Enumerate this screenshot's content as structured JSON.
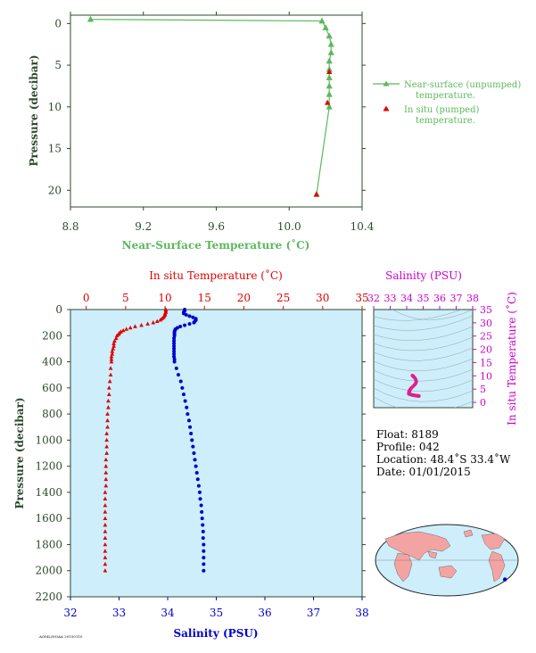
{
  "chart_data": [
    {
      "type": "line",
      "xlabel": "Near-Surface Temperature (˚C)",
      "ylabel": "Pressure (decibar)",
      "xlim": [
        8.8,
        10.4
      ],
      "ylim": [
        22,
        -1
      ],
      "x_ticks": [
        "8.8",
        "9.2",
        "9.6",
        "10.0",
        "10.4"
      ],
      "y_ticks": [
        "0",
        "5",
        "10",
        "15",
        "20"
      ],
      "colors": {
        "axis": "#2d4a2d",
        "label": "#5cb85c",
        "near_surface": "#5cb85c",
        "in_situ": "#e00000"
      },
      "legend": [
        {
          "name": "Near-surface (unpumped)",
          "name2": "temperature."
        },
        {
          "name": "In situ (pumped)",
          "name2": "temperature."
        }
      ],
      "series": [
        {
          "name": "near_surface",
          "points": [
            [
              8.91,
              -0.5
            ],
            [
              10.18,
              -0.3
            ],
            [
              10.2,
              0.5
            ],
            [
              10.22,
              1.5
            ],
            [
              10.23,
              2.5
            ],
            [
              10.23,
              3.5
            ],
            [
              10.22,
              4.5
            ],
            [
              10.22,
              5.5
            ],
            [
              10.22,
              6.5
            ],
            [
              10.22,
              7.5
            ],
            [
              10.22,
              8.5
            ],
            [
              10.22,
              10
            ],
            [
              10.15,
              20.5
            ]
          ]
        },
        {
          "name": "in_situ",
          "points": [
            [
              10.22,
              5.8
            ],
            [
              10.21,
              9.5
            ],
            [
              10.15,
              20.5
            ]
          ]
        }
      ]
    },
    {
      "type": "scatter",
      "x_top_label": "In situ Temperature (˚C)",
      "x_bottom_label": "Salinity (PSU)",
      "ylabel": "Pressure (decibar)",
      "temp_lim": [
        -2,
        35
      ],
      "sal_lim": [
        32,
        38
      ],
      "ylim": [
        2200,
        0
      ],
      "temp_ticks": [
        "0",
        "5",
        "10",
        "15",
        "20",
        "25",
        "30",
        "35"
      ],
      "sal_ticks": [
        "32",
        "33",
        "34",
        "35",
        "36",
        "37",
        "38"
      ],
      "y_ticks": [
        "0",
        "200",
        "400",
        "600",
        "800",
        "1000",
        "1200",
        "1400",
        "1600",
        "1800",
        "2000",
        "2200"
      ],
      "colors": {
        "temperature": "#e00000",
        "salinity": "#0000cc",
        "background": "#cdeefa",
        "axis": "#2d4a2d"
      },
      "temperature": [
        [
          10.1,
          0
        ],
        [
          10.1,
          10
        ],
        [
          10.1,
          20
        ],
        [
          10.0,
          30
        ],
        [
          10.0,
          40
        ],
        [
          9.9,
          50
        ],
        [
          9.8,
          60
        ],
        [
          9.6,
          70
        ],
        [
          9.4,
          80
        ],
        [
          9.0,
          90
        ],
        [
          8.5,
          100
        ],
        [
          7.8,
          110
        ],
        [
          7.0,
          120
        ],
        [
          6.2,
          130
        ],
        [
          5.6,
          140
        ],
        [
          5.1,
          150
        ],
        [
          4.7,
          160
        ],
        [
          4.4,
          170
        ],
        [
          4.2,
          180
        ],
        [
          4.1,
          190
        ],
        [
          3.9,
          200
        ],
        [
          3.8,
          220
        ],
        [
          3.6,
          240
        ],
        [
          3.5,
          260
        ],
        [
          3.5,
          280
        ],
        [
          3.4,
          300
        ],
        [
          3.3,
          320
        ],
        [
          3.3,
          340
        ],
        [
          3.2,
          360
        ],
        [
          3.2,
          380
        ],
        [
          3.2,
          400
        ],
        [
          3.1,
          450
        ],
        [
          3.1,
          500
        ],
        [
          3.0,
          550
        ],
        [
          2.9,
          600
        ],
        [
          2.9,
          650
        ],
        [
          2.8,
          700
        ],
        [
          2.8,
          750
        ],
        [
          2.7,
          800
        ],
        [
          2.7,
          850
        ],
        [
          2.7,
          900
        ],
        [
          2.6,
          950
        ],
        [
          2.6,
          1000
        ],
        [
          2.6,
          1050
        ],
        [
          2.6,
          1100
        ],
        [
          2.5,
          1150
        ],
        [
          2.5,
          1200
        ],
        [
          2.5,
          1250
        ],
        [
          2.5,
          1300
        ],
        [
          2.5,
          1350
        ],
        [
          2.4,
          1400
        ],
        [
          2.4,
          1450
        ],
        [
          2.4,
          1500
        ],
        [
          2.4,
          1550
        ],
        [
          2.4,
          1600
        ],
        [
          2.4,
          1650
        ],
        [
          2.4,
          1700
        ],
        [
          2.4,
          1750
        ],
        [
          2.4,
          1800
        ],
        [
          2.4,
          1850
        ],
        [
          2.4,
          1900
        ],
        [
          2.4,
          1950
        ],
        [
          2.4,
          2000
        ]
      ],
      "salinity": [
        [
          34.35,
          0
        ],
        [
          34.35,
          10
        ],
        [
          34.33,
          20
        ],
        [
          34.33,
          30
        ],
        [
          34.38,
          40
        ],
        [
          34.45,
          50
        ],
        [
          34.52,
          60
        ],
        [
          34.58,
          70
        ],
        [
          34.58,
          80
        ],
        [
          34.56,
          90
        ],
        [
          34.54,
          100
        ],
        [
          34.45,
          110
        ],
        [
          34.35,
          120
        ],
        [
          34.26,
          130
        ],
        [
          34.2,
          140
        ],
        [
          34.16,
          150
        ],
        [
          34.15,
          160
        ],
        [
          34.14,
          170
        ],
        [
          34.14,
          180
        ],
        [
          34.14,
          190
        ],
        [
          34.14,
          200
        ],
        [
          34.13,
          220
        ],
        [
          34.13,
          240
        ],
        [
          34.13,
          260
        ],
        [
          34.13,
          280
        ],
        [
          34.13,
          300
        ],
        [
          34.13,
          320
        ],
        [
          34.13,
          340
        ],
        [
          34.13,
          360
        ],
        [
          34.14,
          380
        ],
        [
          34.14,
          400
        ],
        [
          34.18,
          450
        ],
        [
          34.22,
          500
        ],
        [
          34.27,
          550
        ],
        [
          34.3,
          600
        ],
        [
          34.33,
          650
        ],
        [
          34.36,
          700
        ],
        [
          34.39,
          750
        ],
        [
          34.41,
          800
        ],
        [
          34.44,
          850
        ],
        [
          34.46,
          900
        ],
        [
          34.48,
          950
        ],
        [
          34.5,
          1000
        ],
        [
          34.52,
          1050
        ],
        [
          34.54,
          1100
        ],
        [
          34.56,
          1150
        ],
        [
          34.58,
          1200
        ],
        [
          34.6,
          1250
        ],
        [
          34.62,
          1300
        ],
        [
          34.64,
          1350
        ],
        [
          34.66,
          1400
        ],
        [
          34.67,
          1450
        ],
        [
          34.69,
          1500
        ],
        [
          34.7,
          1550
        ],
        [
          34.71,
          1600
        ],
        [
          34.72,
          1650
        ],
        [
          34.73,
          1700
        ],
        [
          34.73,
          1750
        ],
        [
          34.74,
          1800
        ],
        [
          34.74,
          1850
        ],
        [
          34.74,
          1900
        ],
        [
          34.74,
          1950
        ],
        [
          34.74,
          2000
        ]
      ]
    },
    {
      "type": "scatter",
      "xlabel": "Salinity (PSU)",
      "ylabel": "In situ Temperature (˚C)",
      "xlim": [
        32,
        38
      ],
      "ylim": [
        -2,
        35
      ],
      "x_ticks": [
        "32",
        "33",
        "34",
        "35",
        "36",
        "37",
        "38"
      ],
      "y_ticks": [
        "0",
        "5",
        "10",
        "15",
        "20",
        "25",
        "30",
        "35"
      ],
      "colors": {
        "points": "#e0208a",
        "label": "#cc00cc",
        "background": "#cdeefa"
      },
      "points": [
        [
          34.35,
          10.1
        ],
        [
          34.4,
          9.8
        ],
        [
          34.48,
          9.3
        ],
        [
          34.55,
          8.6
        ],
        [
          34.58,
          7.9
        ],
        [
          34.55,
          7.2
        ],
        [
          34.48,
          6.6
        ],
        [
          34.38,
          6.0
        ],
        [
          34.28,
          5.4
        ],
        [
          34.22,
          4.9
        ],
        [
          34.18,
          4.5
        ],
        [
          34.16,
          4.2
        ],
        [
          34.15,
          4.0
        ],
        [
          34.14,
          3.8
        ],
        [
          34.14,
          3.6
        ],
        [
          34.13,
          3.4
        ],
        [
          34.13,
          3.3
        ],
        [
          34.14,
          3.2
        ],
        [
          34.18,
          3.1
        ],
        [
          34.22,
          3.0
        ],
        [
          34.28,
          2.9
        ],
        [
          34.33,
          2.8
        ],
        [
          34.39,
          2.7
        ],
        [
          34.44,
          2.7
        ],
        [
          34.5,
          2.6
        ],
        [
          34.55,
          2.6
        ],
        [
          34.6,
          2.5
        ],
        [
          34.65,
          2.5
        ],
        [
          34.69,
          2.4
        ],
        [
          34.72,
          2.4
        ],
        [
          34.74,
          2.4
        ]
      ]
    }
  ],
  "info": {
    "float": "Float:  8189",
    "profile": "Profile:  042",
    "location": "Location:  48.4˚S  33.4˚W",
    "date": "Date:  01/01/2015"
  },
  "map": {
    "colors": {
      "ocean": "#cdeefa",
      "land": "#f4a3a3",
      "marker": "#0000cc"
    },
    "marker_lon": -33.4,
    "marker_lat": -48.4
  },
  "footer_code": "AOML/NOAA  20150110"
}
